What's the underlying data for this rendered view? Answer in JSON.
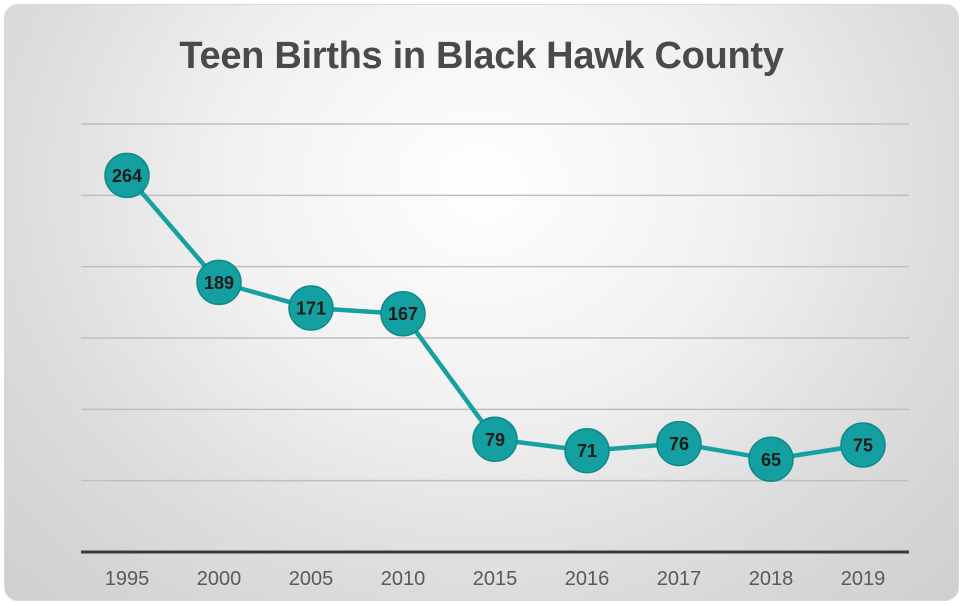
{
  "chart_data": {
    "type": "line",
    "title": "Teen Births in Black Hawk County",
    "xlabel": "",
    "ylabel": "",
    "categories": [
      "1995",
      "2000",
      "2005",
      "2010",
      "2015",
      "2016",
      "2017",
      "2018",
      "2019"
    ],
    "values": [
      264,
      189,
      171,
      167,
      79,
      71,
      76,
      65,
      75
    ],
    "ylim": [
      0,
      300
    ],
    "grid": true,
    "legend": "none",
    "data_labels": [
      "264",
      "189",
      "171",
      "167",
      "79",
      "71",
      "76",
      "65",
      "75"
    ],
    "colors": {
      "line": "#16a0a0",
      "marker": "#14a0a0",
      "marker_edge": "#0e8a8a",
      "gridline": "#bfbfbf",
      "axis": "#3a3a3a",
      "title": "#4a4a4a"
    }
  }
}
